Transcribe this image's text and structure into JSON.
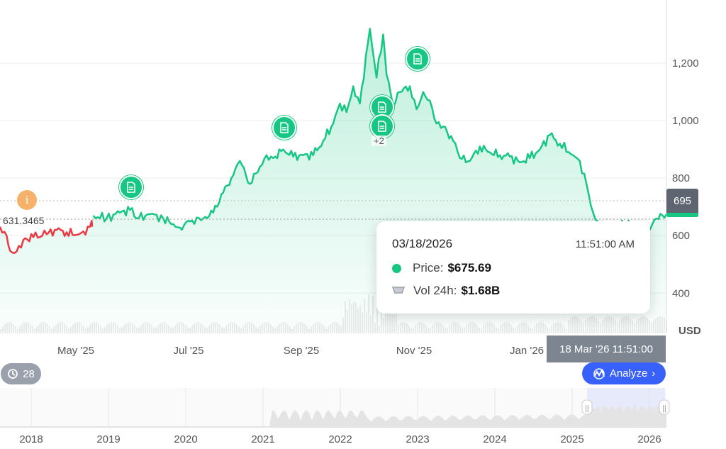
{
  "chart_data": {
    "type": "area",
    "currency_label": "USD",
    "current_price_label": "695",
    "baseline_label": "631.3465",
    "y_ticks": [
      "1,200",
      "1,000",
      "800",
      "600",
      "400"
    ],
    "y_tick_values": [
      1200,
      1000,
      800,
      600,
      400
    ],
    "ylim": [
      260,
      1420
    ],
    "x_ticks": [
      "May '25",
      "Jul '25",
      "Sep '25",
      "Nov '25",
      "Jan '26"
    ],
    "navigator_ticks": [
      "2018",
      "2019",
      "2020",
      "2021",
      "2022",
      "2023",
      "2024",
      "2025",
      "2026"
    ],
    "series": [
      {
        "values": [
          [
            0.0,
            631
          ],
          [
            0.01,
            600
          ],
          [
            0.015,
            548
          ],
          [
            0.025,
            545
          ],
          [
            0.035,
            585
          ],
          [
            0.05,
            595
          ],
          [
            0.07,
            605
          ],
          [
            0.085,
            620
          ],
          [
            0.1,
            612
          ],
          [
            0.115,
            603
          ],
          [
            0.125,
            615
          ],
          [
            0.135,
            631
          ],
          [
            0.14,
            670
          ],
          [
            0.16,
            660
          ],
          [
            0.18,
            680
          ],
          [
            0.195,
            690
          ],
          [
            0.205,
            660
          ],
          [
            0.225,
            675
          ],
          [
            0.245,
            660
          ],
          [
            0.26,
            640
          ],
          [
            0.27,
            628
          ],
          [
            0.285,
            650
          ],
          [
            0.305,
            660
          ],
          [
            0.32,
            680
          ],
          [
            0.335,
            750
          ],
          [
            0.35,
            810
          ],
          [
            0.36,
            860
          ],
          [
            0.375,
            780
          ],
          [
            0.39,
            840
          ],
          [
            0.4,
            880
          ],
          [
            0.41,
            870
          ],
          [
            0.425,
            900
          ],
          [
            0.44,
            875
          ],
          [
            0.455,
            880
          ],
          [
            0.47,
            880
          ],
          [
            0.485,
            930
          ],
          [
            0.5,
            990
          ],
          [
            0.51,
            1060
          ],
          [
            0.52,
            1030
          ],
          [
            0.53,
            1120
          ],
          [
            0.54,
            1060
          ],
          [
            0.555,
            1320
          ],
          [
            0.565,
            1150
          ],
          [
            0.575,
            1300
          ],
          [
            0.58,
            1160
          ],
          [
            0.59,
            1050
          ],
          [
            0.6,
            1100
          ],
          [
            0.615,
            1120
          ],
          [
            0.625,
            1040
          ],
          [
            0.635,
            1100
          ],
          [
            0.645,
            1070
          ],
          [
            0.655,
            990
          ],
          [
            0.665,
            980
          ],
          [
            0.68,
            930
          ],
          [
            0.69,
            870
          ],
          [
            0.705,
            860
          ],
          [
            0.72,
            910
          ],
          [
            0.735,
            890
          ],
          [
            0.75,
            880
          ],
          [
            0.765,
            875
          ],
          [
            0.78,
            855
          ],
          [
            0.795,
            870
          ],
          [
            0.81,
            900
          ],
          [
            0.825,
            950
          ],
          [
            0.84,
            920
          ],
          [
            0.86,
            880
          ],
          [
            0.87,
            860
          ],
          [
            0.88,
            780
          ],
          [
            0.89,
            680
          ],
          [
            0.9,
            640
          ],
          [
            0.92,
            640
          ],
          [
            0.94,
            640
          ],
          [
            0.96,
            630
          ],
          [
            0.975,
            620
          ],
          [
            0.985,
            660
          ],
          [
            1.0,
            675
          ]
        ]
      }
    ],
    "volume_baseline": true,
    "news_markers": 5,
    "news_more_label": "+2"
  },
  "tooltip": {
    "date": "03/18/2026",
    "time": "11:51:00 AM",
    "price_label": "Price:",
    "price_value": "$675.69",
    "volume_label": "Vol 24h:",
    "volume_value": "$1.68B"
  },
  "crosshair_label": "18 Mar '26 11:51:00",
  "analyze_button": "Analyze",
  "history_count": "28",
  "colors": {
    "up": "#16c784",
    "down": "#ea3943",
    "accent": "#3861fb"
  }
}
